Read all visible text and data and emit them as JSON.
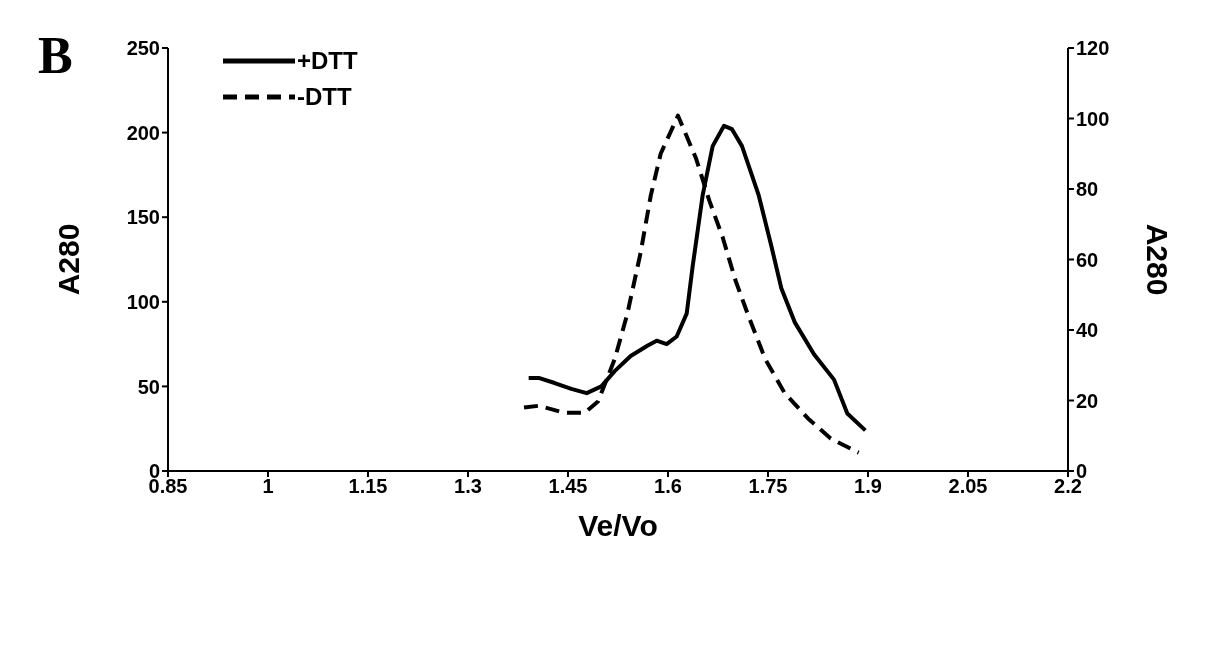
{
  "chart_data": {
    "type": "line",
    "xlabel": "Ve/Vo",
    "ylabel": "A280",
    "y2label": "A280",
    "annotations": [
      "B"
    ],
    "xlim": [
      0.85,
      2.2
    ],
    "xticks": [
      0.85,
      1,
      1.15,
      1.3,
      1.45,
      1.6,
      1.75,
      1.9,
      2.05,
      2.2
    ],
    "ylim": [
      0,
      250
    ],
    "yticks": [
      0,
      50,
      100,
      150,
      200,
      250
    ],
    "y2lim": [
      0,
      120
    ],
    "y2ticks": [
      0,
      20,
      40,
      60,
      80,
      100,
      120
    ],
    "legend": "top left",
    "marker": "none",
    "series": [
      {
        "name": "+DTT",
        "color": "#000000",
        "line_style": "solid",
        "x": [
          1.391,
          1.406,
          1.43,
          1.455,
          1.478,
          1.5,
          1.52,
          1.544,
          1.569,
          1.583,
          1.598,
          1.613,
          1.628,
          1.637,
          1.652,
          1.667,
          1.684,
          1.696,
          1.711,
          1.736,
          1.755,
          1.77,
          1.79,
          1.819,
          1.849,
          1.869,
          1.896
        ],
        "values": [
          55,
          55,
          52,
          48.5,
          46,
          50,
          59,
          68,
          74,
          77,
          75,
          79.5,
          93,
          121,
          163,
          192,
          204,
          202,
          192,
          163,
          133,
          108,
          88,
          69,
          54,
          34,
          24
        ]
      },
      {
        "name": "-DTT",
        "color": "#000000",
        "line_style": "dashed",
        "axis": "y2",
        "x": [
          1.384,
          1.406,
          1.445,
          1.475,
          1.495,
          1.52,
          1.539,
          1.559,
          1.574,
          1.589,
          1.615,
          1.642,
          1.662,
          1.682,
          1.701,
          1.721,
          1.746,
          1.775,
          1.81,
          1.844,
          1.886
        ],
        "values": [
          18,
          18.5,
          16.5,
          16.5,
          19.7,
          31.7,
          44.6,
          62,
          78,
          90,
          100.8,
          88.7,
          76.7,
          66.3,
          54.2,
          43.8,
          31.7,
          22.1,
          14.9,
          9.2,
          5.2
        ]
      }
    ]
  }
}
